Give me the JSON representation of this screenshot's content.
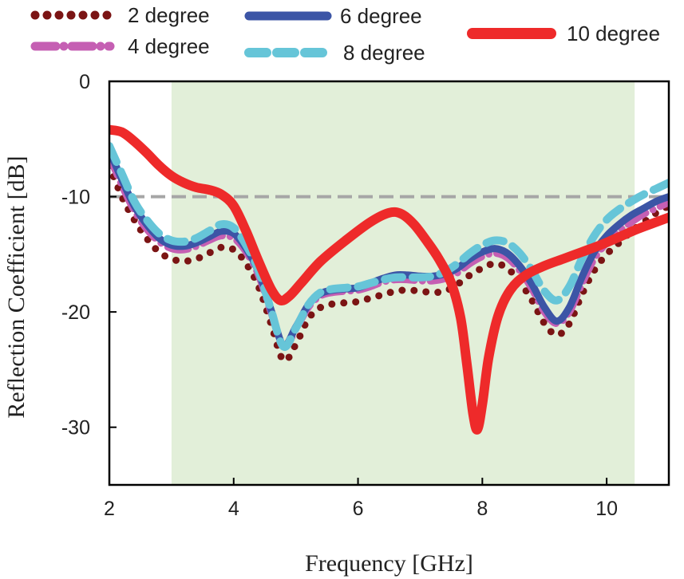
{
  "chart_data": {
    "type": "line",
    "title": "",
    "xlabel": "Frequency [GHz]",
    "ylabel": "Reflection Coefficient [dB]",
    "xlim": [
      2,
      11
    ],
    "ylim": [
      -35,
      0
    ],
    "xticks": [
      2,
      4,
      6,
      8,
      10
    ],
    "yticks": [
      0,
      -10,
      -20,
      -30
    ],
    "grid": false,
    "legend_position": "top",
    "shaded_band": {
      "x_start": 3.0,
      "x_end": 10.45,
      "color": "#e2efd9"
    },
    "reference_line": {
      "y": -10,
      "style": "dashed",
      "color": "#a6a6a6"
    },
    "series": [
      {
        "name": "2 degree",
        "color": "#7b1414",
        "style": "dotted",
        "points": [
          [
            2.0,
            -7.3
          ],
          [
            2.2,
            -10
          ],
          [
            2.4,
            -12
          ],
          [
            2.6,
            -13.6
          ],
          [
            2.8,
            -14.8
          ],
          [
            3.0,
            -15.4
          ],
          [
            3.2,
            -15.6
          ],
          [
            3.4,
            -15.4
          ],
          [
            3.6,
            -14.9
          ],
          [
            3.8,
            -14.4
          ],
          [
            4.0,
            -14.6
          ],
          [
            4.2,
            -15.8
          ],
          [
            4.4,
            -17.8
          ],
          [
            4.6,
            -21
          ],
          [
            4.8,
            -24.2
          ],
          [
            5.0,
            -22.8
          ],
          [
            5.2,
            -20.6
          ],
          [
            5.4,
            -19.6
          ],
          [
            5.6,
            -19.3
          ],
          [
            5.8,
            -19.2
          ],
          [
            6.0,
            -19.1
          ],
          [
            6.2,
            -18.8
          ],
          [
            6.4,
            -18.5
          ],
          [
            6.6,
            -18.2
          ],
          [
            6.8,
            -18.1
          ],
          [
            7.0,
            -18.2
          ],
          [
            7.2,
            -18.3
          ],
          [
            7.4,
            -18.2
          ],
          [
            7.6,
            -17.6
          ],
          [
            7.8,
            -16.8
          ],
          [
            8.0,
            -16.2
          ],
          [
            8.2,
            -15.8
          ],
          [
            8.4,
            -16.2
          ],
          [
            8.6,
            -17.4
          ],
          [
            8.8,
            -19
          ],
          [
            9.0,
            -21
          ],
          [
            9.2,
            -22
          ],
          [
            9.4,
            -21
          ],
          [
            9.6,
            -18.5
          ],
          [
            9.8,
            -16.4
          ],
          [
            10.0,
            -15
          ],
          [
            10.2,
            -14
          ],
          [
            10.4,
            -13
          ],
          [
            10.6,
            -12.2
          ],
          [
            10.8,
            -11.4
          ],
          [
            11.0,
            -10.8
          ]
        ]
      },
      {
        "name": "4 degree",
        "color": "#c55fb3",
        "style": "dashdot",
        "points": [
          [
            2.0,
            -6.5
          ],
          [
            2.2,
            -9
          ],
          [
            2.4,
            -11.2
          ],
          [
            2.6,
            -12.8
          ],
          [
            2.8,
            -13.9
          ],
          [
            3.0,
            -14.5
          ],
          [
            3.2,
            -14.6
          ],
          [
            3.4,
            -14.3
          ],
          [
            3.6,
            -13.8
          ],
          [
            3.8,
            -13.4
          ],
          [
            4.0,
            -13.6
          ],
          [
            4.2,
            -14.8
          ],
          [
            4.4,
            -16.8
          ],
          [
            4.6,
            -20
          ],
          [
            4.8,
            -23
          ],
          [
            5.0,
            -21.5
          ],
          [
            5.2,
            -19.6
          ],
          [
            5.4,
            -18.6
          ],
          [
            5.6,
            -18.3
          ],
          [
            5.8,
            -18.2
          ],
          [
            6.0,
            -18.1
          ],
          [
            6.2,
            -17.8
          ],
          [
            6.4,
            -17.4
          ],
          [
            6.6,
            -17.2
          ],
          [
            6.8,
            -17.2
          ],
          [
            7.0,
            -17.3
          ],
          [
            7.2,
            -17.3
          ],
          [
            7.4,
            -17.1
          ],
          [
            7.6,
            -16.6
          ],
          [
            7.8,
            -15.8
          ],
          [
            8.0,
            -15.2
          ],
          [
            8.2,
            -14.9
          ],
          [
            8.4,
            -15.3
          ],
          [
            8.6,
            -16.4
          ],
          [
            8.8,
            -18
          ],
          [
            9.0,
            -20
          ],
          [
            9.2,
            -21
          ],
          [
            9.4,
            -20
          ],
          [
            9.6,
            -17.6
          ],
          [
            9.8,
            -15.4
          ],
          [
            10.0,
            -14
          ],
          [
            10.2,
            -13
          ],
          [
            10.4,
            -12.2
          ],
          [
            10.6,
            -11.5
          ],
          [
            10.8,
            -11
          ],
          [
            11.0,
            -10.5
          ]
        ]
      },
      {
        "name": "6 degree",
        "color": "#3c55a6",
        "style": "solid",
        "points": [
          [
            2.0,
            -6.0
          ],
          [
            2.2,
            -8.5
          ],
          [
            2.4,
            -10.8
          ],
          [
            2.6,
            -12.4
          ],
          [
            2.8,
            -13.6
          ],
          [
            3.0,
            -14.2
          ],
          [
            3.2,
            -14.3
          ],
          [
            3.4,
            -14
          ],
          [
            3.6,
            -13.5
          ],
          [
            3.8,
            -13.0
          ],
          [
            4.0,
            -13.2
          ],
          [
            4.2,
            -14.5
          ],
          [
            4.4,
            -16.5
          ],
          [
            4.6,
            -19.8
          ],
          [
            4.8,
            -22.9
          ],
          [
            5.0,
            -21.3
          ],
          [
            5.2,
            -19.4
          ],
          [
            5.4,
            -18.4
          ],
          [
            5.6,
            -18.1
          ],
          [
            5.8,
            -18
          ],
          [
            6.0,
            -17.9
          ],
          [
            6.2,
            -17.5
          ],
          [
            6.4,
            -17.1
          ],
          [
            6.6,
            -16.8
          ],
          [
            6.8,
            -16.8
          ],
          [
            7.0,
            -16.9
          ],
          [
            7.2,
            -16.9
          ],
          [
            7.4,
            -16.7
          ],
          [
            7.6,
            -16.2
          ],
          [
            7.8,
            -15.4
          ],
          [
            8.0,
            -14.8
          ],
          [
            8.2,
            -14.5
          ],
          [
            8.4,
            -14.9
          ],
          [
            8.6,
            -16
          ],
          [
            8.8,
            -17.6
          ],
          [
            9.0,
            -19.6
          ],
          [
            9.2,
            -20.8
          ],
          [
            9.4,
            -19.6
          ],
          [
            9.6,
            -17
          ],
          [
            9.8,
            -14.8
          ],
          [
            10.0,
            -13.4
          ],
          [
            10.2,
            -12.4
          ],
          [
            10.4,
            -11.6
          ],
          [
            10.6,
            -11
          ],
          [
            10.8,
            -10.4
          ],
          [
            11.0,
            -10
          ]
        ]
      },
      {
        "name": "8 degree",
        "color": "#66c5d8",
        "style": "dashed",
        "points": [
          [
            2.0,
            -5.6
          ],
          [
            2.2,
            -8
          ],
          [
            2.4,
            -10.4
          ],
          [
            2.6,
            -12.0
          ],
          [
            2.8,
            -13.2
          ],
          [
            3.0,
            -13.8
          ],
          [
            3.2,
            -13.9
          ],
          [
            3.4,
            -13.6
          ],
          [
            3.6,
            -13
          ],
          [
            3.8,
            -12.4
          ],
          [
            4.0,
            -12.7
          ],
          [
            4.2,
            -14.2
          ],
          [
            4.4,
            -16.4
          ],
          [
            4.6,
            -19.8
          ],
          [
            4.8,
            -23.0
          ],
          [
            5.0,
            -21.4
          ],
          [
            5.2,
            -19.4
          ],
          [
            5.4,
            -18.3
          ],
          [
            5.6,
            -18
          ],
          [
            5.8,
            -17.9
          ],
          [
            6.0,
            -17.8
          ],
          [
            6.2,
            -17.5
          ],
          [
            6.4,
            -17.2
          ],
          [
            6.6,
            -17
          ],
          [
            6.8,
            -17
          ],
          [
            7.0,
            -17
          ],
          [
            7.2,
            -16.9
          ],
          [
            7.4,
            -16.5
          ],
          [
            7.6,
            -15.8
          ],
          [
            7.8,
            -14.9
          ],
          [
            8.0,
            -14.2
          ],
          [
            8.2,
            -13.8
          ],
          [
            8.4,
            -14
          ],
          [
            8.6,
            -14.9
          ],
          [
            8.8,
            -16.4
          ],
          [
            9.0,
            -18.2
          ],
          [
            9.2,
            -19
          ],
          [
            9.4,
            -17.8
          ],
          [
            9.6,
            -15.4
          ],
          [
            9.8,
            -13.4
          ],
          [
            10.0,
            -12
          ],
          [
            10.2,
            -11.1
          ],
          [
            10.4,
            -10.4
          ],
          [
            10.6,
            -9.8
          ],
          [
            10.8,
            -9.3
          ],
          [
            11.0,
            -8.8
          ]
        ]
      },
      {
        "name": "10 degree",
        "color": "#ee2a2a",
        "style": "solid-thick",
        "points": [
          [
            2.0,
            -4.2
          ],
          [
            2.2,
            -4.4
          ],
          [
            2.4,
            -5.2
          ],
          [
            2.6,
            -6.2
          ],
          [
            2.8,
            -7.3
          ],
          [
            3.0,
            -8.2
          ],
          [
            3.2,
            -8.8
          ],
          [
            3.4,
            -9.2
          ],
          [
            3.6,
            -9.4
          ],
          [
            3.8,
            -9.8
          ],
          [
            4.0,
            -10.8
          ],
          [
            4.2,
            -13
          ],
          [
            4.4,
            -15.6
          ],
          [
            4.6,
            -18
          ],
          [
            4.75,
            -19
          ],
          [
            4.9,
            -18.6
          ],
          [
            5.1,
            -17.4
          ],
          [
            5.4,
            -15.6
          ],
          [
            5.8,
            -13.8
          ],
          [
            6.2,
            -12.2
          ],
          [
            6.5,
            -11.4
          ],
          [
            6.7,
            -11.5
          ],
          [
            6.9,
            -12.4
          ],
          [
            7.1,
            -13.8
          ],
          [
            7.3,
            -15.4
          ],
          [
            7.5,
            -17.5
          ],
          [
            7.65,
            -20.5
          ],
          [
            7.75,
            -24.5
          ],
          [
            7.85,
            -28.8
          ],
          [
            7.92,
            -30.2
          ],
          [
            8.0,
            -28
          ],
          [
            8.1,
            -24
          ],
          [
            8.25,
            -20.4
          ],
          [
            8.45,
            -18.1
          ],
          [
            8.7,
            -16.8
          ],
          [
            9.0,
            -16.0
          ],
          [
            9.3,
            -15.4
          ],
          [
            9.6,
            -14.8
          ],
          [
            9.9,
            -14.2
          ],
          [
            10.2,
            -13.5
          ],
          [
            10.5,
            -12.8
          ],
          [
            10.8,
            -12.2
          ],
          [
            11.0,
            -11.8
          ]
        ]
      }
    ]
  }
}
